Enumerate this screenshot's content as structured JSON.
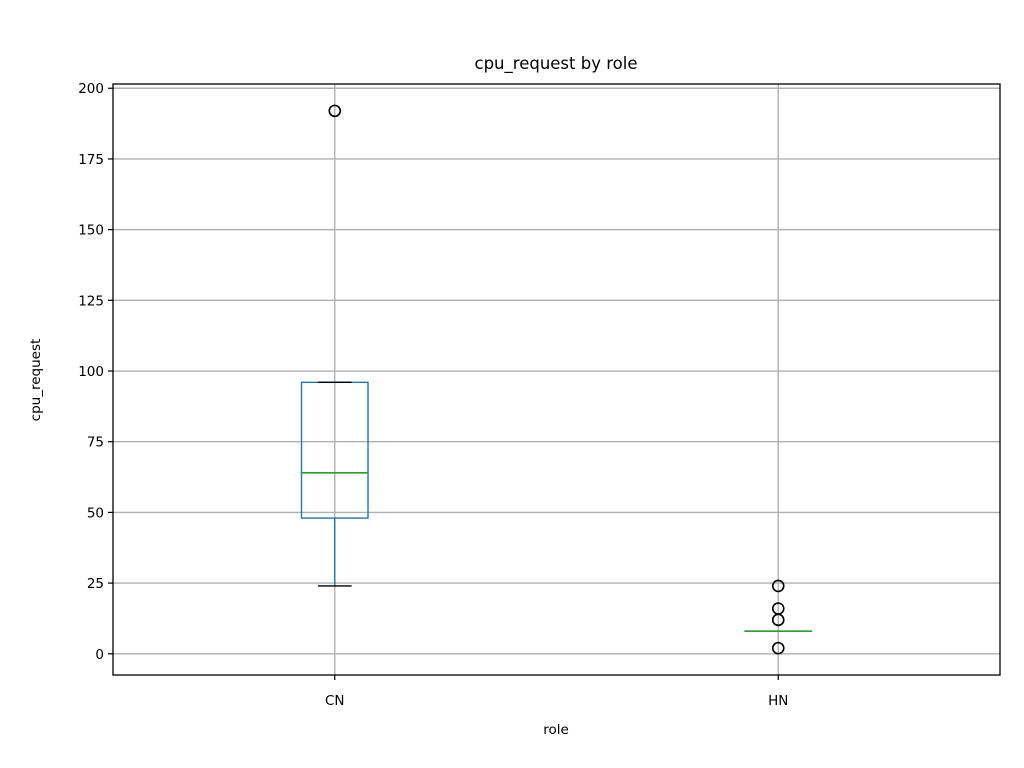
{
  "chart_data": {
    "type": "box",
    "title": "cpu_request by role",
    "xlabel": "role",
    "ylabel": "cpu_request",
    "ylim": [
      -7.5,
      201.5
    ],
    "yticks": [
      0,
      25,
      50,
      75,
      100,
      125,
      150,
      175,
      200
    ],
    "grid": true,
    "categories": [
      "CN",
      "HN"
    ],
    "boxes": [
      {
        "category": "CN",
        "whisker_low": 24,
        "q1": 48,
        "median": 64,
        "q3": 96,
        "whisker_high": 96,
        "outliers": [
          192
        ]
      },
      {
        "category": "HN",
        "whisker_low": 8,
        "q1": 8,
        "median": 8,
        "q3": 8,
        "whisker_high": 8,
        "outliers": [
          2,
          12,
          16,
          24
        ]
      }
    ],
    "colors": {
      "box": "#1f77b4",
      "median": "#2ca02c",
      "whisker": "#1f77b4",
      "cap": "#000000",
      "flier": "#000000",
      "grid": "#b0b0b0"
    }
  }
}
